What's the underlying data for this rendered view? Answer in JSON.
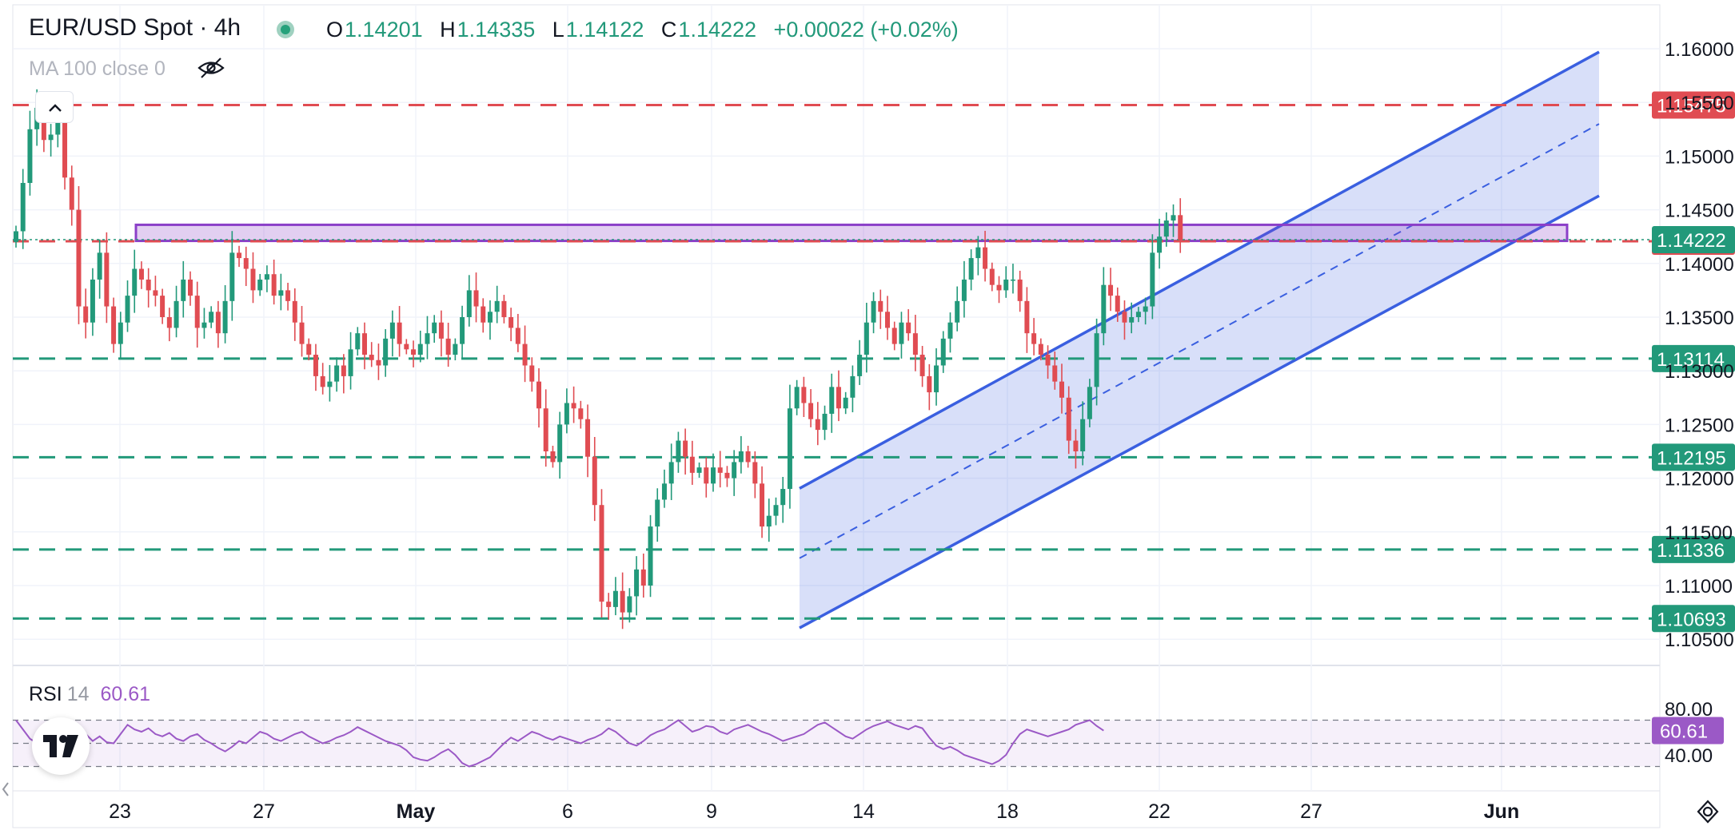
{
  "header": {
    "title": "EUR/USD Spot · 4h",
    "ohlc": {
      "o_label": "O",
      "o": "1.14201",
      "h_label": "H",
      "h": "1.14335",
      "l_label": "L",
      "l": "1.14122",
      "c_label": "C",
      "c": "1.14222",
      "change": "+0.00022 (+0.02%)"
    },
    "indicator": "MA 100 close 0"
  },
  "rsi": {
    "name": "RSI",
    "period": "14",
    "value": "60.61"
  },
  "colors": {
    "bull": "#22997a",
    "bear": "#e04c52",
    "channel": "#3a5fe0",
    "zone": "#8b3fc8",
    "rsi": "#9b59c6"
  },
  "chart_data": {
    "type": "candlestick",
    "y_ticks": [
      1.16,
      1.155,
      1.15,
      1.145,
      1.14,
      1.135,
      1.13,
      1.125,
      1.12,
      1.115,
      1.11,
      1.105
    ],
    "y_tick_labels": [
      "1.16000",
      "1.15500",
      "1.15000",
      "1.14500",
      "1.14000",
      "1.13500",
      "1.13000",
      "1.12500",
      "1.12000",
      "1.11500",
      "1.11000",
      "1.10500"
    ],
    "x_labels": [
      "23",
      "27",
      "May",
      "6",
      "9",
      "14",
      "18",
      "22",
      "27",
      "Jun"
    ],
    "current_price": "1.14222",
    "levels": [
      {
        "value": 1.15475,
        "label": "1.15475",
        "color": "#e04c52"
      },
      {
        "value": 1.14207,
        "label": "1.14207",
        "color": "#e04c52"
      },
      {
        "value": 1.13114,
        "label": "1.13114",
        "color": "#22997a"
      },
      {
        "value": 1.12195,
        "label": "1.12195",
        "color": "#22997a"
      },
      {
        "value": 1.11336,
        "label": "1.11336",
        "color": "#22997a"
      },
      {
        "value": 1.10693,
        "label": "1.10693",
        "color": "#22997a"
      }
    ],
    "zone": {
      "from": 1.1421,
      "to": 1.1436
    },
    "closes": [
      1.143,
      1.1475,
      1.1525,
      1.1545,
      1.1515,
      1.152,
      1.154,
      1.148,
      1.145,
      1.136,
      1.1345,
      1.1385,
      1.141,
      1.136,
      1.1325,
      1.1345,
      1.137,
      1.1395,
      1.1385,
      1.1375,
      1.137,
      1.135,
      1.134,
      1.1365,
      1.1385,
      1.137,
      1.134,
      1.1345,
      1.1355,
      1.1335,
      1.1365,
      1.141,
      1.1405,
      1.1395,
      1.1375,
      1.1385,
      1.139,
      1.137,
      1.1375,
      1.1365,
      1.1345,
      1.1325,
      1.1315,
      1.1295,
      1.1285,
      1.129,
      1.1305,
      1.1295,
      1.132,
      1.1335,
      1.1315,
      1.131,
      1.1305,
      1.133,
      1.1345,
      1.1325,
      1.132,
      1.1315,
      1.1325,
      1.1335,
      1.1345,
      1.133,
      1.1315,
      1.1325,
      1.135,
      1.1375,
      1.136,
      1.1345,
      1.1355,
      1.1365,
      1.135,
      1.134,
      1.1325,
      1.1305,
      1.129,
      1.1265,
      1.1225,
      1.1215,
      1.125,
      1.127,
      1.1265,
      1.1255,
      1.122,
      1.1175,
      1.1085,
      1.108,
      1.1095,
      1.1075,
      1.109,
      1.1115,
      1.11,
      1.1155,
      1.118,
      1.1195,
      1.1215,
      1.1235,
      1.122,
      1.1205,
      1.121,
      1.1195,
      1.121,
      1.1205,
      1.12,
      1.1215,
      1.1225,
      1.1215,
      1.1195,
      1.1155,
      1.1165,
      1.1175,
      1.119,
      1.1265,
      1.1285,
      1.127,
      1.1255,
      1.1245,
      1.126,
      1.1285,
      1.1265,
      1.1275,
      1.1295,
      1.1315,
      1.1345,
      1.1365,
      1.1355,
      1.134,
      1.1325,
      1.1345,
      1.1335,
      1.1315,
      1.1295,
      1.128,
      1.1305,
      1.133,
      1.1345,
      1.1365,
      1.1385,
      1.1405,
      1.1415,
      1.1395,
      1.138,
      1.1375,
      1.1385,
      1.1385,
      1.1365,
      1.1335,
      1.1325,
      1.1315,
      1.1305,
      1.129,
      1.1275,
      1.1235,
      1.1225,
      1.1255,
      1.1285,
      1.1335,
      1.138,
      1.137,
      1.1355,
      1.1345,
      1.135,
      1.1355,
      1.136,
      1.141,
      1.1425,
      1.144,
      1.1445,
      1.1422
    ],
    "rsi_axis": [
      "80.00",
      "40.00"
    ],
    "rsi_values": [
      70,
      62,
      54,
      50,
      56,
      52,
      48,
      47,
      55,
      53,
      58,
      52,
      56,
      51,
      50,
      58,
      66,
      62,
      60,
      63,
      58,
      56,
      59,
      54,
      52,
      56,
      58,
      53,
      50,
      46,
      43,
      47,
      52,
      50,
      55,
      60,
      58,
      54,
      52,
      55,
      58,
      60,
      56,
      53,
      50,
      52,
      55,
      57,
      60,
      64,
      61,
      58,
      55,
      52,
      50,
      48,
      44,
      38,
      36,
      35,
      38,
      42,
      45,
      40,
      33,
      30,
      32,
      35,
      38,
      44,
      50,
      55,
      52,
      56,
      60,
      58,
      55,
      53,
      56,
      54,
      52,
      50,
      53,
      55,
      58,
      63,
      60,
      55,
      50,
      48,
      52,
      57,
      60,
      62,
      66,
      70,
      65,
      60,
      62,
      65,
      64,
      60,
      58,
      62,
      64,
      66,
      63,
      60,
      58,
      55,
      52,
      54,
      56,
      58,
      62,
      66,
      68,
      64,
      60,
      56,
      54,
      58,
      62,
      65,
      67,
      69,
      66,
      64,
      62,
      65,
      63,
      55,
      48,
      45,
      47,
      44,
      40,
      38,
      36,
      34,
      32,
      35,
      40,
      50,
      58,
      62,
      60,
      58,
      56,
      58,
      60,
      62,
      66,
      68,
      70,
      65,
      61
    ]
  }
}
